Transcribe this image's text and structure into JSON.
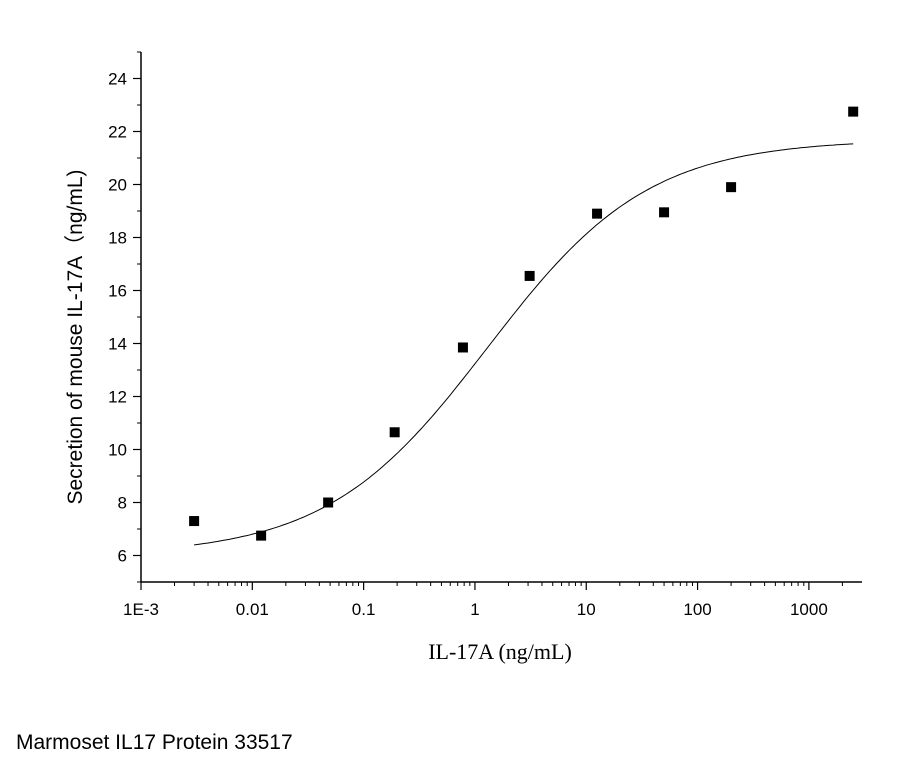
{
  "caption": "Marmoset IL17 Protein 33517",
  "chart_data": {
    "type": "scatter",
    "xlabel": "IL-17A (ng/mL)",
    "ylabel": "Secretion of mouse IL-17A（ng/mL)",
    "xscale": "log",
    "xlim": [
      0.001,
      3000
    ],
    "ylim": [
      5,
      25
    ],
    "xticks": [
      0.001,
      0.01,
      0.1,
      1,
      10,
      100,
      1000
    ],
    "xtick_labels": [
      "1E-3",
      "0.01",
      "0.1",
      "1",
      "10",
      "100",
      "1000"
    ],
    "yticks": [
      6,
      8,
      10,
      12,
      14,
      16,
      18,
      20,
      22,
      24
    ],
    "ytick_labels": [
      "6",
      "8",
      "10",
      "12",
      "14",
      "16",
      "18",
      "20",
      "22",
      "24"
    ],
    "grid": false,
    "legend": "none",
    "series": [
      {
        "marker": "square",
        "x": [
          0.003,
          0.012,
          0.048,
          0.19,
          0.78,
          3.1,
          12.5,
          50,
          200,
          2500
        ],
        "y": [
          7.3,
          6.75,
          8.0,
          10.65,
          13.85,
          16.55,
          18.9,
          18.95,
          19.9,
          22.75
        ]
      }
    ],
    "fit": {
      "type": "4PL sigmoid",
      "bottom": 6.0,
      "top": 21.7,
      "ec50": 1.3,
      "hill": 0.6,
      "x_range": [
        0.003,
        2500
      ]
    }
  }
}
